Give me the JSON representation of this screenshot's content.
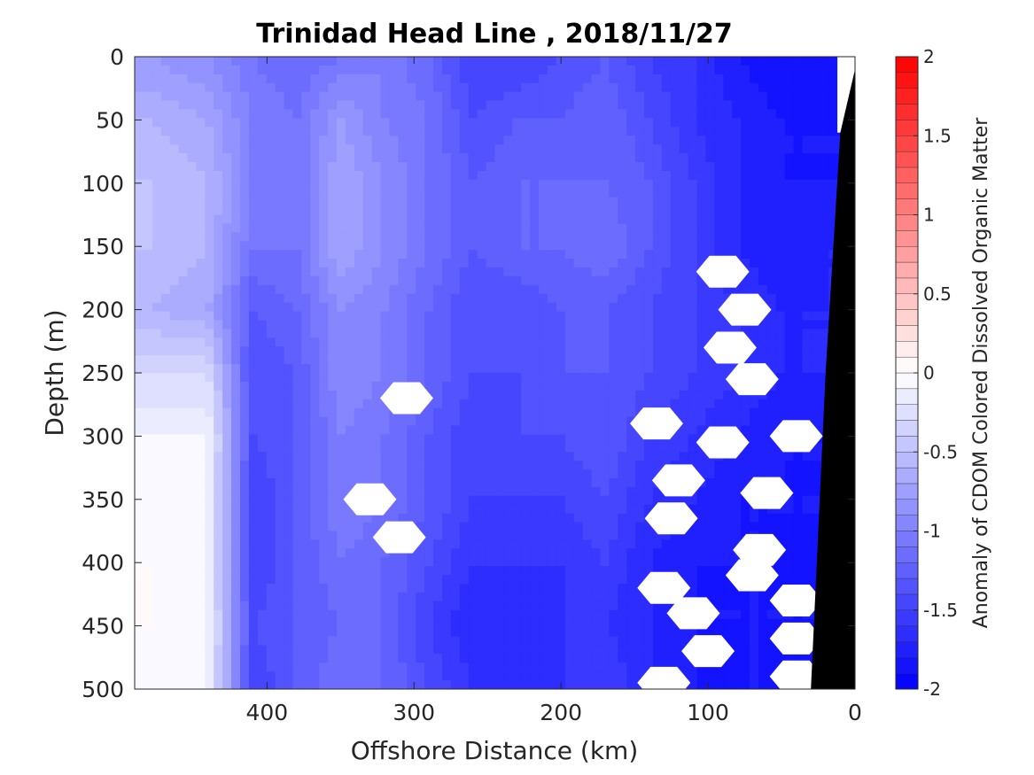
{
  "chart_data": {
    "type": "heatmap",
    "title": "Trinidad Head Line , 2018/11/27",
    "xlabel": "Offshore Distance (km)",
    "ylabel": "Depth (m)",
    "xlim": [
      490,
      0
    ],
    "ylim": [
      0,
      500
    ],
    "x_reversed": true,
    "y_reversed": true,
    "x_ticks": [
      400,
      300,
      200,
      100,
      0
    ],
    "y_ticks": [
      0,
      50,
      100,
      150,
      200,
      250,
      300,
      350,
      400,
      450,
      500
    ],
    "colorbar": {
      "label": "Anomaly of CDOM Colored Dissolved Organic Matter",
      "range": [
        -2,
        2
      ],
      "ticks": [
        -2,
        -1.5,
        -1,
        -0.5,
        0,
        0.5,
        1,
        1.5,
        2
      ],
      "tick_labels": [
        "-2",
        "-1.5",
        "-1",
        "-0.5",
        "0",
        "0.5",
        "1",
        "1.5",
        "2"
      ],
      "levels": 40,
      "colormap": "blue-white-red"
    },
    "x_stations": [
      480,
      440,
      410,
      380,
      350,
      320,
      290,
      260,
      230,
      200,
      170,
      140,
      110,
      80,
      50,
      20
    ],
    "depth_levels": [
      0,
      50,
      100,
      150,
      200,
      250,
      300,
      350,
      400,
      450,
      500
    ],
    "anomaly": [
      [
        -0.8,
        -0.9,
        -1.1,
        -1.2,
        -1.1,
        -1.0,
        -1.2,
        -1.5,
        -1.5,
        -1.4,
        -1.3,
        -1.5,
        -1.6,
        -1.8,
        -1.9,
        -1.8
      ],
      [
        -0.6,
        -0.7,
        -1.0,
        -1.1,
        -0.8,
        -1.0,
        -1.1,
        -1.4,
        -1.3,
        -1.3,
        -1.2,
        -1.4,
        -1.6,
        -1.7,
        -1.8,
        -1.8
      ],
      [
        -0.5,
        -0.6,
        -1.0,
        -1.1,
        -0.7,
        -0.9,
        -1.1,
        -1.3,
        -1.2,
        -1.2,
        -1.2,
        -1.3,
        -1.5,
        -1.7,
        -1.8,
        -1.8
      ],
      [
        -0.5,
        -0.6,
        -1.1,
        -1.1,
        -0.7,
        -0.9,
        -1.1,
        -1.3,
        -1.2,
        -1.2,
        -1.1,
        -1.3,
        -1.5,
        -1.7,
        -1.8,
        -1.7
      ],
      [
        -0.6,
        -0.7,
        -1.3,
        -1.2,
        -0.9,
        -1.0,
        -1.2,
        -1.4,
        -1.4,
        -1.3,
        -1.3,
        -1.4,
        -1.5,
        -1.6,
        -1.7,
        -1.7
      ],
      [
        -0.3,
        -0.3,
        -1.4,
        -1.3,
        -0.9,
        -1.0,
        -1.2,
        -1.4,
        -1.4,
        -1.3,
        -1.3,
        -1.4,
        -1.5,
        -1.6,
        -1.7,
        -1.7
      ],
      [
        -0.1,
        -0.1,
        -1.4,
        -1.3,
        -1.0,
        -1.1,
        -1.3,
        -1.5,
        -1.4,
        -1.4,
        -1.3,
        -1.5,
        -1.6,
        -1.7,
        -1.8,
        -1.8
      ],
      [
        -0.1,
        -0.1,
        -1.5,
        -1.3,
        -1.0,
        -1.1,
        -1.3,
        -1.5,
        -1.5,
        -1.5,
        -1.4,
        -1.6,
        -1.7,
        -1.8,
        -1.8,
        -1.8
      ],
      [
        0.0,
        -0.1,
        -1.5,
        -1.3,
        -1.1,
        -1.2,
        -1.4,
        -1.6,
        -1.6,
        -1.6,
        -1.5,
        -1.7,
        -1.8,
        -1.8,
        -1.8,
        -1.8
      ],
      [
        0.0,
        -0.1,
        -1.4,
        -1.3,
        -1.2,
        -1.2,
        -1.5,
        -1.7,
        -1.7,
        -1.6,
        -1.6,
        -1.7,
        -1.8,
        -1.8,
        -1.8,
        -1.8
      ],
      [
        -0.1,
        -0.1,
        -1.5,
        -1.3,
        -1.1,
        -1.2,
        -1.4,
        -1.6,
        -1.7,
        -1.6,
        -1.5,
        -1.7,
        -1.8,
        -1.8,
        -1.8,
        -1.8
      ]
    ],
    "no_data_patches": [
      {
        "x": 90,
        "depth": 170
      },
      {
        "x": 75,
        "depth": 200
      },
      {
        "x": 85,
        "depth": 230
      },
      {
        "x": 70,
        "depth": 255
      },
      {
        "x": 305,
        "depth": 270
      },
      {
        "x": 135,
        "depth": 290
      },
      {
        "x": 90,
        "depth": 305
      },
      {
        "x": 40,
        "depth": 300
      },
      {
        "x": 120,
        "depth": 335
      },
      {
        "x": 60,
        "depth": 345
      },
      {
        "x": 125,
        "depth": 365
      },
      {
        "x": 330,
        "depth": 350
      },
      {
        "x": 310,
        "depth": 380
      },
      {
        "x": 65,
        "depth": 390
      },
      {
        "x": 70,
        "depth": 410
      },
      {
        "x": 130,
        "depth": 420
      },
      {
        "x": 110,
        "depth": 440
      },
      {
        "x": 40,
        "depth": 430
      },
      {
        "x": 40,
        "depth": 460
      },
      {
        "x": 100,
        "depth": 470
      },
      {
        "x": 40,
        "depth": 490
      },
      {
        "x": 130,
        "depth": 495
      }
    ],
    "seafloor": [
      [
        0,
        0
      ],
      [
        10,
        60
      ],
      [
        20,
        250
      ],
      [
        30,
        500
      ]
    ]
  }
}
